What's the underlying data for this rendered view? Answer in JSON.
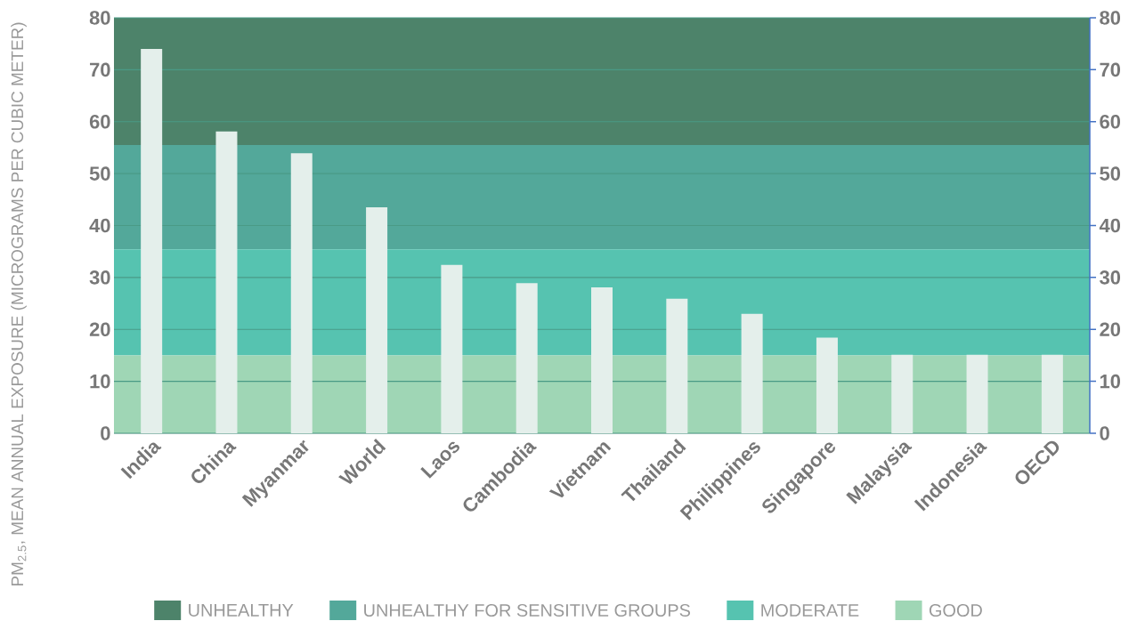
{
  "chart_data": {
    "type": "bar",
    "ylabel": "PM$_{2.5}$, MEAN ANNUAL EXPOSURE (MICROGRAMS PER CUBIC METER)",
    "categories": [
      "India",
      "China",
      "Myanmar",
      "World",
      "Laos",
      "Cambodia",
      "Vietnam",
      "Thailand",
      "Philippines",
      "Singapore",
      "Malaysia",
      "Indonesia",
      "OECD"
    ],
    "values": [
      74.0,
      58.1,
      53.9,
      43.5,
      32.4,
      28.9,
      28.1,
      25.9,
      23.0,
      18.4,
      15.1,
      15.1,
      15.1
    ],
    "color": "#e4efeb",
    "ylim": [
      0,
      80
    ],
    "yticks": [
      0,
      10,
      20,
      30,
      40,
      50,
      60,
      70,
      80
    ],
    "y2lim": [
      0,
      80
    ],
    "y2ticks": [
      0,
      10,
      20,
      30,
      40,
      50,
      60,
      70,
      80
    ],
    "grid": "y",
    "legend": "bottom",
    "bands": [
      {
        "axis": "y",
        "from": 55.5,
        "to": 80,
        "label": "UNHEALTHY",
        "color": "#4d836a"
      },
      {
        "axis": "y",
        "from": 35.4,
        "to": 55.5,
        "label": "UNHEALTHY FOR SENSITIVE GROUPS",
        "color": "#53a89a"
      },
      {
        "axis": "y",
        "from": 15,
        "to": 35.4,
        "label": "MODERATE",
        "color": "#56c3b0"
      },
      {
        "axis": "y",
        "from": 0,
        "to": 15,
        "label": "GOOD",
        "color": "#9fd6b5"
      }
    ]
  }
}
